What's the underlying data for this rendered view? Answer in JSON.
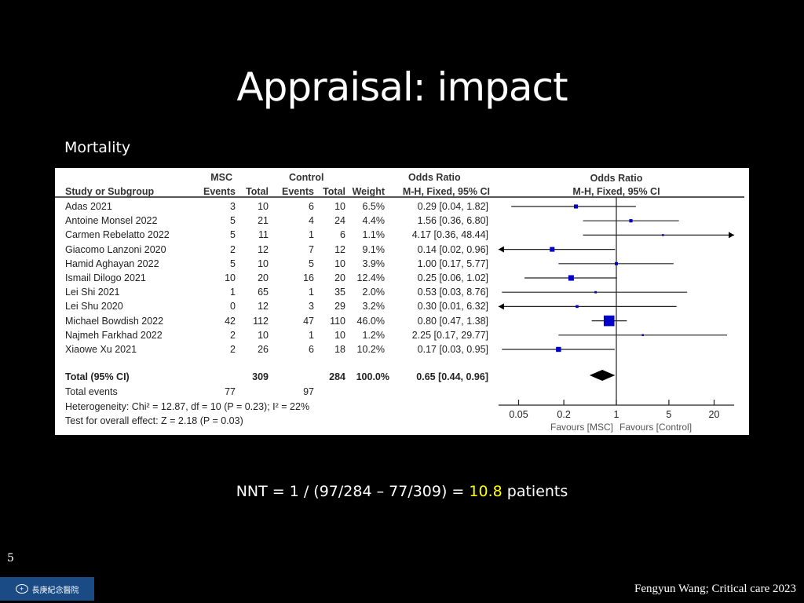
{
  "slide": {
    "title": "Appraisal: impact",
    "subtitle": "Mortality",
    "nnt_prefix": "NNT = 1 / (97/284 – 77/309) = ",
    "nnt_value": "10.8",
    "nnt_suffix": " patients",
    "page_number": "5",
    "logo_text": "長庚紀念醫院",
    "citation": "Fengyun Wang; Critical care 2023",
    "highlight_color": "#ffff00"
  },
  "table": {
    "header": {
      "group_msc": "MSC",
      "group_control": "Control",
      "group_or": "Odds Ratio",
      "study": "Study or Subgroup",
      "events": "Events",
      "total": "Total",
      "events2": "Events",
      "total2": "Total",
      "weight": "Weight",
      "method": "M-H, Fixed, 95% CI"
    },
    "total_row": {
      "label": "Total (95% CI)",
      "msc_total": "309",
      "control_total": "284",
      "weight": "100.0%",
      "ci": "0.65 [0.44, 0.96]"
    },
    "total_events": {
      "label": "Total events",
      "msc": "77",
      "control": "97"
    },
    "heterogeneity": "Heterogeneity: Chi² = 12.87, df = 10 (P = 0.23); I² = 22%",
    "overall_effect": "Test for overall effect: Z = 2.18 (P = 0.03)"
  },
  "chart_data": {
    "type": "forest",
    "title": "Odds Ratio",
    "subtitle": "M-H, Fixed, 95% CI",
    "scale": "log",
    "xticks": [
      0.05,
      0.2,
      1,
      5,
      20
    ],
    "xtick_labels": [
      "0.05",
      "0.2",
      "1",
      "5",
      "20"
    ],
    "xlim": [
      0.027,
      37
    ],
    "favours_left": "Favours [MSC]",
    "favours_right": "Favours [Control]",
    "studies": [
      {
        "name": "Adas 2021",
        "e1": "3",
        "n1": "10",
        "e2": "6",
        "n2": "10",
        "weight": "6.5%",
        "ci_text": "0.29 [0.04, 1.82]",
        "or": 0.29,
        "lo": 0.04,
        "hi": 1.82,
        "w": 6.5
      },
      {
        "name": "Antoine Monsel 2022",
        "e1": "5",
        "n1": "21",
        "e2": "4",
        "n2": "24",
        "weight": "4.4%",
        "ci_text": "1.56 [0.36, 6.80]",
        "or": 1.56,
        "lo": 0.36,
        "hi": 6.8,
        "w": 4.4
      },
      {
        "name": "Carmen Rebelatto 2022",
        "e1": "5",
        "n1": "11",
        "e2": "1",
        "n2": "6",
        "weight": "1.1%",
        "ci_text": "4.17 [0.36, 48.44]",
        "or": 4.17,
        "lo": 0.36,
        "hi": 48.44,
        "w": 1.1
      },
      {
        "name": "Giacomo Lanzoni 2020",
        "e1": "2",
        "n1": "12",
        "e2": "7",
        "n2": "12",
        "weight": "9.1%",
        "ci_text": "0.14 [0.02, 0.96]",
        "or": 0.14,
        "lo": 0.02,
        "hi": 0.96,
        "w": 9.1
      },
      {
        "name": "Hamid Aghayan 2022",
        "e1": "5",
        "n1": "10",
        "e2": "5",
        "n2": "10",
        "weight": "3.9%",
        "ci_text": "1.00 [0.17, 5.77]",
        "or": 1.0,
        "lo": 0.17,
        "hi": 5.77,
        "w": 3.9
      },
      {
        "name": "Ismail Dilogo 2021",
        "e1": "10",
        "n1": "20",
        "e2": "16",
        "n2": "20",
        "weight": "12.4%",
        "ci_text": "0.25 [0.06, 1.02]",
        "or": 0.25,
        "lo": 0.06,
        "hi": 1.02,
        "w": 12.4
      },
      {
        "name": "Lei Shi 2021",
        "e1": "1",
        "n1": "65",
        "e2": "1",
        "n2": "35",
        "weight": "2.0%",
        "ci_text": "0.53 [0.03, 8.76]",
        "or": 0.53,
        "lo": 0.03,
        "hi": 8.76,
        "w": 2.0
      },
      {
        "name": "Lei Shu 2020",
        "e1": "0",
        "n1": "12",
        "e2": "3",
        "n2": "29",
        "weight": "3.2%",
        "ci_text": "0.30 [0.01, 6.32]",
        "or": 0.3,
        "lo": 0.01,
        "hi": 6.32,
        "w": 3.2
      },
      {
        "name": "Michael Bowdish 2022",
        "e1": "42",
        "n1": "112",
        "e2": "47",
        "n2": "110",
        "weight": "46.0%",
        "ci_text": "0.80 [0.47, 1.38]",
        "or": 0.8,
        "lo": 0.47,
        "hi": 1.38,
        "w": 46.0
      },
      {
        "name": "Najmeh Farkhad 2022",
        "e1": "2",
        "n1": "10",
        "e2": "1",
        "n2": "10",
        "weight": "1.2%",
        "ci_text": "2.25 [0.17, 29.77]",
        "or": 2.25,
        "lo": 0.17,
        "hi": 29.77,
        "w": 1.2
      },
      {
        "name": "Xiaowe Xu 2021",
        "e1": "2",
        "n1": "26",
        "e2": "6",
        "n2": "18",
        "weight": "10.2%",
        "ci_text": "0.17 [0.03, 0.95]",
        "or": 0.17,
        "lo": 0.03,
        "hi": 0.95,
        "w": 10.2
      }
    ],
    "pooled": {
      "or": 0.65,
      "lo": 0.44,
      "hi": 0.96
    },
    "colors": {
      "marker": "#0000c8",
      "line": "#222222",
      "diamond": "#000000"
    }
  }
}
